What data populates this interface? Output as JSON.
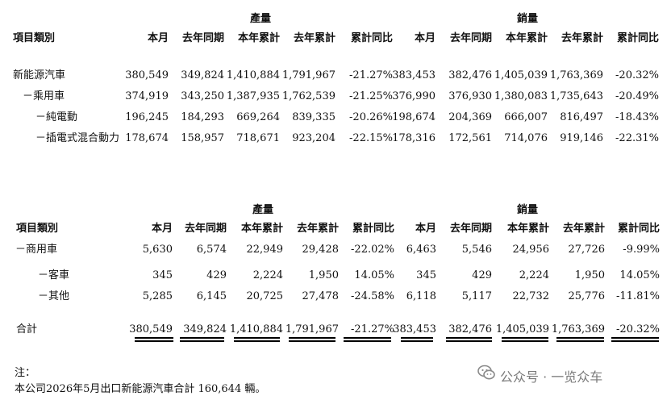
{
  "table1": {
    "group_production": "產量",
    "group_sales": "銷量",
    "category_header": "項目類別",
    "columns": [
      "本月",
      "去年同期",
      "本年累計",
      "去年累計",
      "累計同比",
      "本月",
      "去年同期",
      "本年累計",
      "去年累計",
      "累計同比"
    ],
    "rows": [
      {
        "label": "新能源汽車",
        "values": [
          "380,549",
          "349,824",
          "1,410,884",
          "1,791,967",
          "-21.27%",
          "383,453",
          "382,476",
          "1,405,039",
          "1,763,369",
          "-20.32%"
        ]
      },
      {
        "label": "－乘用車",
        "values": [
          "374,919",
          "343,250",
          "1,387,935",
          "1,762,539",
          "-21.25%",
          "376,990",
          "376,930",
          "1,380,083",
          "1,735,643",
          "-20.49%"
        ]
      },
      {
        "label": "－純電動",
        "values": [
          "196,245",
          "184,293",
          "669,264",
          "839,335",
          "-20.26%",
          "198,674",
          "204,369",
          "666,007",
          "816,497",
          "-18.43%"
        ]
      },
      {
        "label": "－插電式混合動力",
        "values": [
          "178,674",
          "158,957",
          "718,671",
          "923,204",
          "-22.15%",
          "178,316",
          "172,561",
          "714,076",
          "919,146",
          "-22.31%"
        ]
      }
    ]
  },
  "table2": {
    "group_production": "產量",
    "group_sales": "銷量",
    "category_header": "項目類別",
    "columns": [
      "本月",
      "去年同期",
      "本年累計",
      "去年累計",
      "累計同比",
      "本月",
      "去年同期",
      "本年累計",
      "去年累計",
      "累計同比"
    ],
    "rows": [
      {
        "label": "－商用車",
        "values": [
          "5,630",
          "6,574",
          "22,949",
          "29,428",
          "-22.02%",
          "6,463",
          "5,546",
          "24,956",
          "27,726",
          "-9.99%"
        ]
      },
      {
        "label": "－客車",
        "values": [
          "345",
          "429",
          "2,224",
          "1,950",
          "14.05%",
          "345",
          "429",
          "2,224",
          "1,950",
          "14.05%"
        ]
      },
      {
        "label": "－其他",
        "values": [
          "5,285",
          "6,145",
          "20,725",
          "27,478",
          "-24.58%",
          "6,118",
          "5,117",
          "22,732",
          "25,776",
          "-11.81%"
        ]
      }
    ],
    "total": {
      "label": "合計",
      "values": [
        "380,549",
        "349,824",
        "1,410,884",
        "1,791,967",
        "-21.27%",
        "383,453",
        "382,476",
        "1,405,039",
        "1,763,369",
        "-20.32%"
      ]
    }
  },
  "notes": {
    "title": "注：",
    "line1": "本公司2026年5月出口新能源汽車合計 160,644 輛。"
  },
  "watermark": {
    "text": "公众号 · 一览众车",
    "icon": "wechat-icon"
  }
}
